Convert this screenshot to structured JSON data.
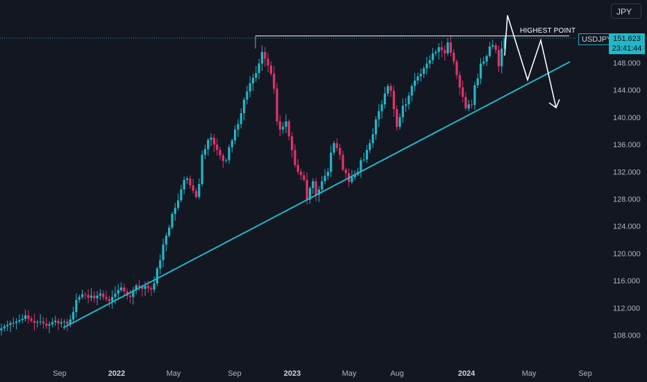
{
  "currency_button": "JPY",
  "symbol": "USDJPY",
  "last_price": "151.623",
  "countdown": "23:41:44",
  "annotation": "HIGHEST POINT",
  "colors": {
    "background": "#131722",
    "up": "#22b7c8",
    "down": "#e5326b",
    "trendline": "#22b7c8",
    "annotation": "#ffffff"
  },
  "chart_data": {
    "type": "candlestick",
    "title": "",
    "y_axis": {
      "position": "right",
      "ticks": [
        108.0,
        112.0,
        116.0,
        120.0,
        124.0,
        128.0,
        132.0,
        136.0,
        140.0,
        144.0,
        148.0
      ],
      "range": [
        106.4,
        154.4
      ]
    },
    "x_axis_labels": [
      "Sep",
      "2022",
      "May",
      "Sep",
      "2023",
      "May",
      "Aug",
      "2024",
      "May",
      "Sep"
    ],
    "grid": false,
    "series": [
      {
        "name": "USDJPY",
        "close_path": [
          109.0,
          109.3,
          109.5,
          109.8,
          109.8,
          110.0,
          110.2,
          110.4,
          110.9,
          110.4,
          110.1,
          109.8,
          109.9,
          110.0,
          109.7,
          109.4,
          109.6,
          109.9,
          110.1,
          109.7,
          109.9,
          110.0,
          109.6,
          110.3,
          111.4,
          113.2,
          113.6,
          114.0,
          113.9,
          113.5,
          113.8,
          113.4,
          113.8,
          114.1,
          113.6,
          113.3,
          113.0,
          113.6,
          114.1,
          114.6,
          115.0,
          114.4,
          113.8,
          113.6,
          114.6,
          115.3,
          115.1,
          114.8,
          115.2,
          114.9,
          114.7,
          115.6,
          117.8,
          119.0,
          121.3,
          122.6,
          123.8,
          125.8,
          126.7,
          127.8,
          129.4,
          130.8,
          131.0,
          130.0,
          129.2,
          128.3,
          130.2,
          134.5,
          135.3,
          136.7,
          137.0,
          136.0,
          135.2,
          134.4,
          133.6,
          133.7,
          135.6,
          136.6,
          138.2,
          139.0,
          140.6,
          142.6,
          143.8,
          145.0,
          145.8,
          146.5,
          147.9,
          149.6,
          148.6,
          147.6,
          146.4,
          144.2,
          139.4,
          138.2,
          138.6,
          139.4,
          137.2,
          135.2,
          133.0,
          132.0,
          131.5,
          130.8,
          127.9,
          129.6,
          130.6,
          128.6,
          129.4,
          130.6,
          131.4,
          132.0,
          134.8,
          136.2,
          135.5,
          134.5,
          132.3,
          131.8,
          130.5,
          131.2,
          131.6,
          132.0,
          133.7,
          133.8,
          135.2,
          136.2,
          137.5,
          139.7,
          140.9,
          141.9,
          143.5,
          144.6,
          143.9,
          141.2,
          138.6,
          140.0,
          141.7,
          141.9,
          143.2,
          144.6,
          145.4,
          146.0,
          146.4,
          147.2,
          147.9,
          148.4,
          149.4,
          149.6,
          150.3,
          149.9,
          149.4,
          151.0,
          149.5,
          148.2,
          146.2,
          144.4,
          143.0,
          141.3,
          141.9,
          141.8,
          144.7,
          145.7,
          147.9,
          148.2,
          149.0,
          150.4,
          150.6,
          149.9,
          147.5,
          150.1,
          151.6
        ]
      }
    ],
    "trendlines": [
      {
        "name": "support",
        "x": [
          "2021-09",
          "2024-06"
        ],
        "y": [
          109.4,
          148.0
        ]
      },
      {
        "name": "resistance",
        "label": "HIGHEST POINT",
        "y": 151.95
      }
    ],
    "projection_arrow": {
      "y": [
        151.6,
        154.1,
        151.0,
        145.3,
        150.8,
        144.0
      ]
    }
  }
}
